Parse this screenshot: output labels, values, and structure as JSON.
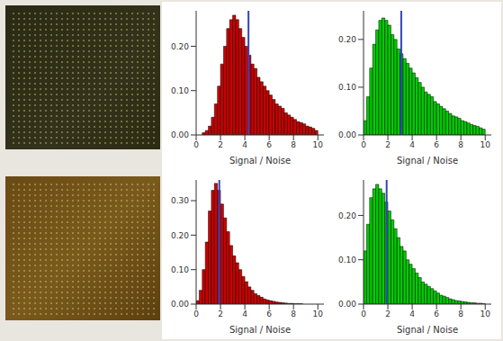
{
  "chart_data": [
    {
      "type": "histogram",
      "color": "#cc0000",
      "x_label": "Signal / Noise",
      "bins": [
        0,
        0.25,
        0.5,
        0.75,
        1,
        1.25,
        1.5,
        1.75,
        2,
        2.25,
        2.5,
        2.75,
        3,
        3.25,
        3.5,
        3.75,
        4,
        4.25,
        4.5,
        4.75,
        5,
        5.25,
        5.5,
        5.75,
        6,
        6.25,
        6.5,
        6.75,
        7,
        7.25,
        7.5,
        7.75,
        8,
        8.25,
        8.5,
        8.75,
        9,
        9.25,
        9.5,
        9.75,
        10
      ],
      "values": [
        0,
        0,
        0.005,
        0.01,
        0.02,
        0.04,
        0.07,
        0.11,
        0.16,
        0.2,
        0.24,
        0.26,
        0.27,
        0.26,
        0.24,
        0.22,
        0.2,
        0.18,
        0.16,
        0.15,
        0.13,
        0.12,
        0.11,
        0.1,
        0.09,
        0.08,
        0.07,
        0.065,
        0.06,
        0.05,
        0.045,
        0.04,
        0.035,
        0.03,
        0.028,
        0.025,
        0.02,
        0.018,
        0.015,
        0.01
      ],
      "line_x": 4.3,
      "xlim": [
        0,
        10.5
      ],
      "xticks": [
        0,
        2,
        4,
        6,
        8,
        10
      ],
      "ylim": [
        0,
        0.28
      ],
      "yticks": [
        {
          "value": 0,
          "label": "0.00"
        },
        {
          "value": 0.1,
          "label": "0.10"
        },
        {
          "value": 0.2,
          "label": "0.20"
        }
      ]
    },
    {
      "type": "histogram",
      "color": "#00cc00",
      "x_label": "Signal / Noise",
      "bins": [
        0,
        0.25,
        0.5,
        0.75,
        1,
        1.25,
        1.5,
        1.75,
        2,
        2.25,
        2.5,
        2.75,
        3,
        3.25,
        3.5,
        3.75,
        4,
        4.25,
        4.5,
        4.75,
        5,
        5.25,
        5.5,
        5.75,
        6,
        6.25,
        6.5,
        6.75,
        7,
        7.25,
        7.5,
        7.75,
        8,
        8.25,
        8.5,
        8.75,
        9,
        9.25,
        9.5,
        9.75,
        10
      ],
      "values": [
        0.03,
        0.08,
        0.14,
        0.19,
        0.22,
        0.24,
        0.245,
        0.24,
        0.23,
        0.21,
        0.2,
        0.18,
        0.17,
        0.16,
        0.15,
        0.14,
        0.13,
        0.12,
        0.11,
        0.1,
        0.09,
        0.085,
        0.08,
        0.07,
        0.065,
        0.06,
        0.055,
        0.05,
        0.045,
        0.04,
        0.038,
        0.035,
        0.03,
        0.028,
        0.025,
        0.022,
        0.02,
        0.018,
        0.015,
        0.012
      ],
      "line_x": 3.1,
      "xlim": [
        0,
        10.5
      ],
      "xticks": [
        0,
        2,
        4,
        6,
        8,
        10
      ],
      "ylim": [
        0,
        0.26
      ],
      "yticks": [
        {
          "value": 0,
          "label": "0.00"
        },
        {
          "value": 0.1,
          "label": "0.10"
        },
        {
          "value": 0.2,
          "label": "0.20"
        }
      ]
    },
    {
      "type": "histogram",
      "color": "#cc0000",
      "x_label": "Signal / Noise",
      "bins": [
        0,
        0.25,
        0.5,
        0.75,
        1,
        1.25,
        1.5,
        1.75,
        2,
        2.25,
        2.5,
        2.75,
        3,
        3.25,
        3.5,
        3.75,
        4,
        4.25,
        4.5,
        4.75,
        5,
        5.25,
        5.5,
        5.75,
        6,
        6.25,
        6.5,
        6.75,
        7,
        7.25,
        7.5,
        7.75,
        8,
        8.25,
        8.5,
        8.75,
        9,
        9.25,
        9.5,
        9.75,
        10
      ],
      "values": [
        0.01,
        0.04,
        0.1,
        0.18,
        0.27,
        0.33,
        0.35,
        0.33,
        0.29,
        0.25,
        0.21,
        0.17,
        0.14,
        0.12,
        0.1,
        0.08,
        0.065,
        0.05,
        0.04,
        0.03,
        0.025,
        0.02,
        0.015,
        0.012,
        0.01,
        0.008,
        0.006,
        0.005,
        0.004,
        0.003,
        0.002,
        0.002,
        0.001,
        0.001,
        0.001,
        0,
        0,
        0,
        0,
        0
      ],
      "line_x": 1.9,
      "xlim": [
        0,
        10.5
      ],
      "xticks": [
        0,
        2,
        4,
        6,
        8,
        10
      ],
      "ylim": [
        0,
        0.36
      ],
      "yticks": [
        {
          "value": 0,
          "label": "0.00"
        },
        {
          "value": 0.1,
          "label": "0.10"
        },
        {
          "value": 0.2,
          "label": "0.20"
        },
        {
          "value": 0.3,
          "label": "0.30"
        }
      ]
    },
    {
      "type": "histogram",
      "color": "#00cc00",
      "x_label": "Signal / Noise",
      "bins": [
        0,
        0.25,
        0.5,
        0.75,
        1,
        1.25,
        1.5,
        1.75,
        2,
        2.25,
        2.5,
        2.75,
        3,
        3.25,
        3.5,
        3.75,
        4,
        4.25,
        4.5,
        4.75,
        5,
        5.25,
        5.5,
        5.75,
        6,
        6.25,
        6.5,
        6.75,
        7,
        7.25,
        7.5,
        7.75,
        8,
        8.25,
        8.5,
        8.75,
        9,
        9.25,
        9.5,
        9.75,
        10
      ],
      "values": [
        0.12,
        0.18,
        0.24,
        0.26,
        0.27,
        0.26,
        0.25,
        0.23,
        0.21,
        0.19,
        0.17,
        0.15,
        0.13,
        0.12,
        0.1,
        0.09,
        0.08,
        0.07,
        0.06,
        0.05,
        0.045,
        0.04,
        0.035,
        0.03,
        0.025,
        0.02,
        0.018,
        0.015,
        0.012,
        0.01,
        0.008,
        0.007,
        0.006,
        0.005,
        0.004,
        0.003,
        0.003,
        0.002,
        0.002,
        0.001
      ],
      "line_x": 1.9,
      "xlim": [
        0,
        10.5
      ],
      "xticks": [
        0,
        2,
        4,
        6,
        8,
        10
      ],
      "ylim": [
        0,
        0.28
      ],
      "yticks": [
        {
          "value": 0,
          "label": "0.00"
        },
        {
          "value": 0.1,
          "label": "0.10"
        },
        {
          "value": 0.2,
          "label": "0.20"
        }
      ]
    }
  ]
}
